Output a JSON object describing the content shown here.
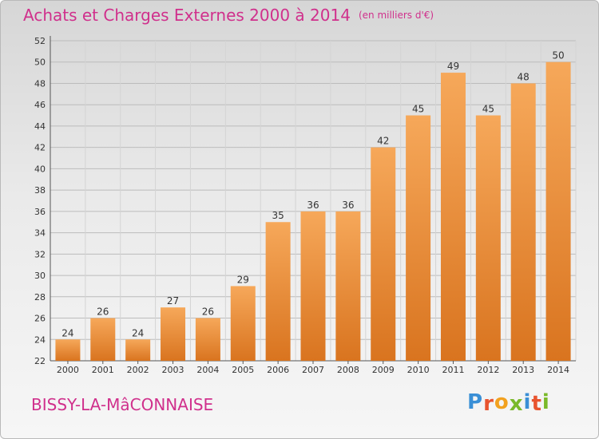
{
  "header": {
    "title": "Achats et Charges Externes 2000 à 2014",
    "unit": "(en milliers d'€)"
  },
  "footer": {
    "commune": "BISSY-LA-MâCONNAISE",
    "logo_letters": [
      "P",
      "r",
      "o",
      "x",
      "i",
      "t",
      "i"
    ],
    "logo_colors": [
      "#3a8fd6",
      "#e8542f",
      "#f2a11f",
      "#7ab929",
      "#3a8fd6",
      "#e8542f",
      "#7ab929"
    ]
  },
  "colors": {
    "bar_light": "#f6a85a",
    "bar_dark": "#d9741f",
    "title": "#d0308c"
  },
  "chart_data": {
    "type": "bar",
    "title": "Achats et Charges Externes 2000 à 2014",
    "subtitle": "(en milliers d'€)",
    "categories": [
      "2000",
      "2001",
      "2002",
      "2003",
      "2004",
      "2005",
      "2006",
      "2007",
      "2008",
      "2009",
      "2010",
      "2011",
      "2012",
      "2013",
      "2014"
    ],
    "values": [
      24,
      26,
      24,
      27,
      26,
      29,
      35,
      36,
      36,
      42,
      45,
      49,
      45,
      48,
      50
    ],
    "ylim": [
      22,
      52
    ],
    "yticks": [
      22,
      24,
      26,
      28,
      30,
      32,
      34,
      36,
      38,
      40,
      42,
      44,
      46,
      48,
      50,
      52
    ],
    "grid": true
  }
}
